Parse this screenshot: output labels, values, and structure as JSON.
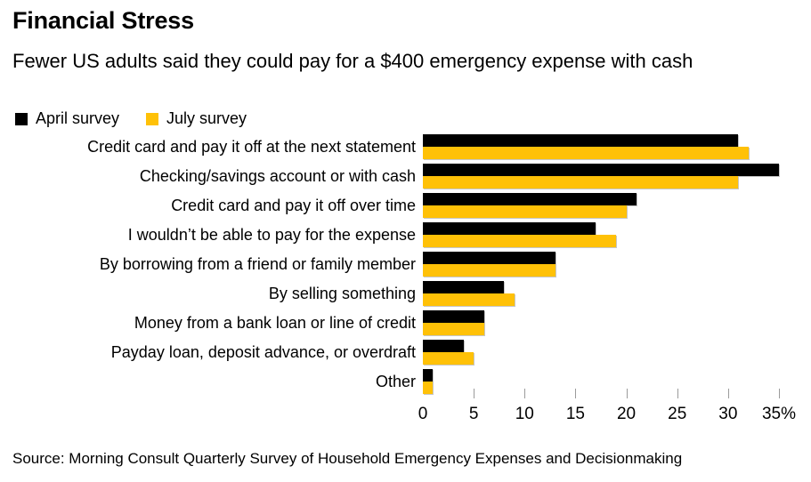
{
  "header": {
    "title": "Financial Stress",
    "subtitle": "Fewer US adults said they could pay for a $400 emergency expense with cash"
  },
  "legend": [
    {
      "label": "April survey",
      "color": "#000000"
    },
    {
      "label": "July survey",
      "color": "#ffc107"
    }
  ],
  "chart_data": {
    "type": "bar",
    "orientation": "horizontal",
    "title": "Financial Stress",
    "subtitle": "Fewer US adults said they could pay for a $400 emergency expense with cash",
    "categories": [
      "Credit card and pay it off at the next statement",
      "Checking/savings account or with cash",
      "Credit card and pay it off over time",
      "I wouldn’t be able to pay for the expense",
      "By borrowing from a friend or family member",
      "By selling something",
      "Money from a bank loan or line of credit",
      "Payday loan, deposit advance, or overdraft",
      "Other"
    ],
    "series": [
      {
        "name": "April survey",
        "color": "#000000",
        "values": [
          31,
          35,
          21,
          17,
          13,
          8,
          6,
          4,
          1
        ]
      },
      {
        "name": "July survey",
        "color": "#ffc107",
        "values": [
          32,
          31,
          20,
          19,
          13,
          9,
          6,
          5,
          1
        ]
      }
    ],
    "xlim": [
      0,
      35
    ],
    "x_ticks": [
      0,
      5,
      10,
      15,
      20,
      25,
      30,
      35
    ],
    "x_tick_labels": [
      "0",
      "5",
      "10",
      "15",
      "20",
      "25",
      "30",
      "35%"
    ],
    "legend_position": "top-left",
    "grid": false,
    "unit": "percent"
  },
  "source": "Source: Morning Consult Quarterly Survey of Household Emergency Expenses and Decisionmaking"
}
